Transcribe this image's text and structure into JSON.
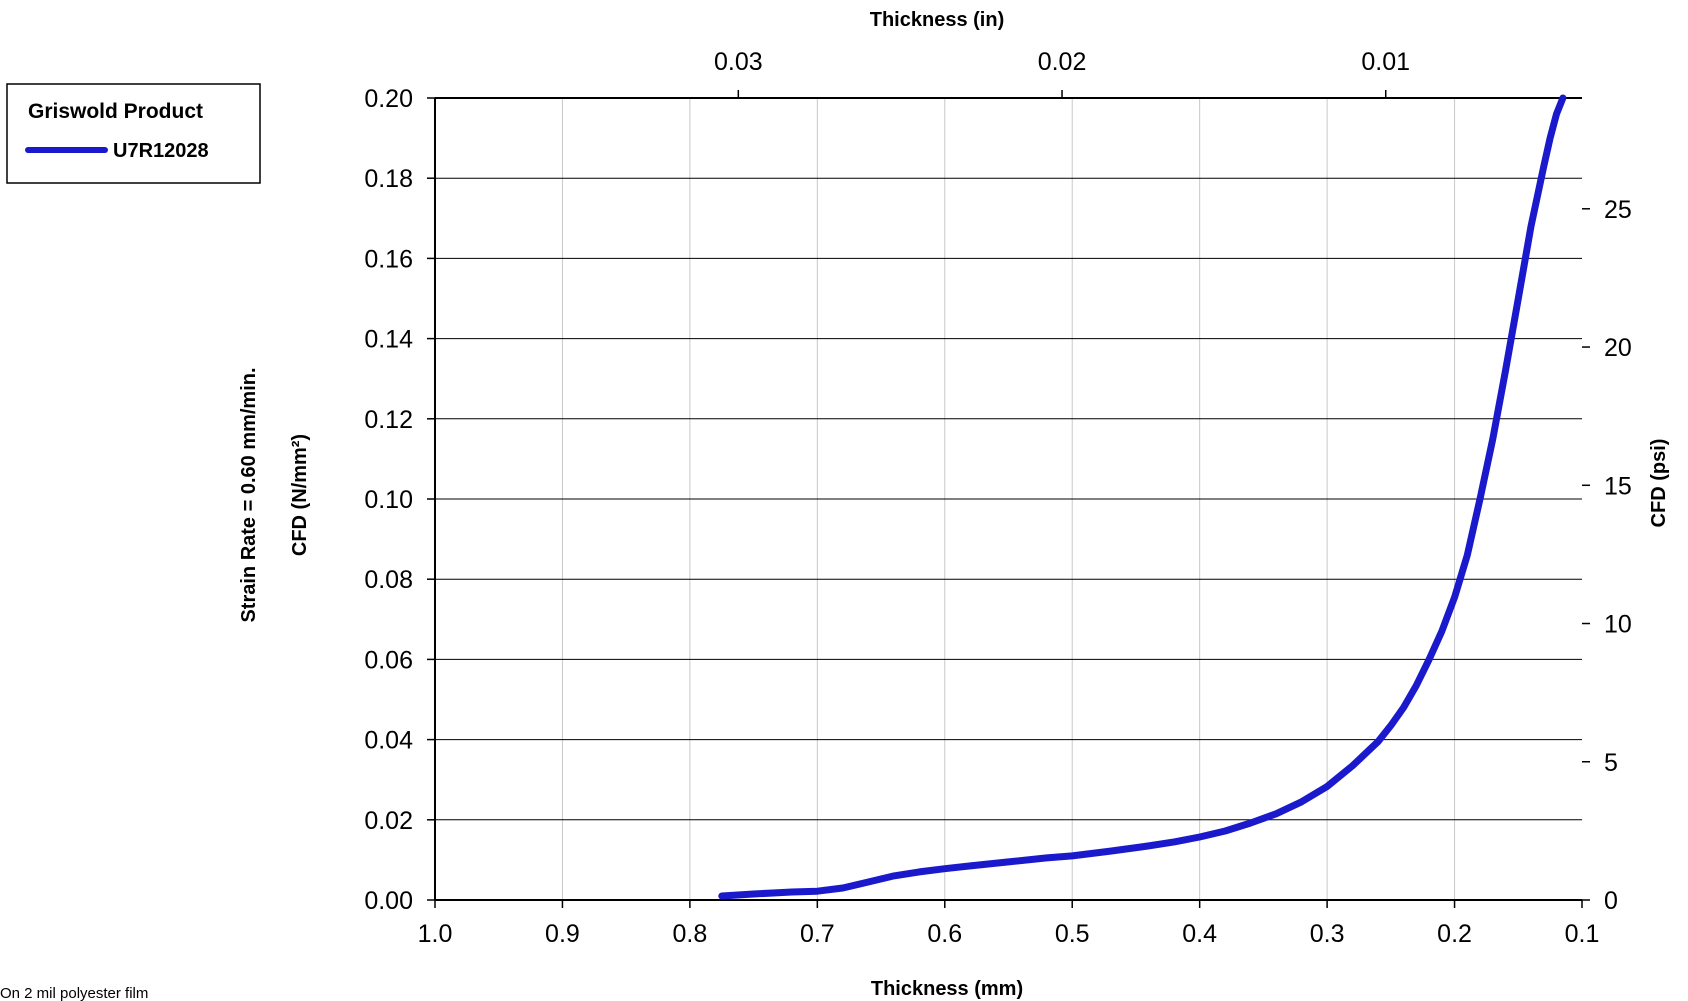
{
  "chart_data": {
    "type": "line",
    "x_axis_bottom": {
      "label": "Thickness (mm)",
      "ticks": [
        "1.0",
        "0.9",
        "0.8",
        "0.7",
        "0.6",
        "0.5",
        "0.4",
        "0.3",
        "0.2",
        "0.1"
      ],
      "range": [
        1.0,
        0.1
      ],
      "reversed": true
    },
    "x_axis_top": {
      "label": "Thickness (in)",
      "ticks": [
        "0.03",
        "0.02",
        "0.01"
      ],
      "tick_values": [
        0.03,
        0.02,
        0.01
      ]
    },
    "y_axis_left": {
      "label": "CFD (N/mm²)",
      "outer_label": "Strain Rate = 0.60 mm/min.",
      "ticks": [
        "0.00",
        "0.02",
        "0.04",
        "0.06",
        "0.08",
        "0.10",
        "0.12",
        "0.14",
        "0.16",
        "0.18",
        "0.20"
      ],
      "range": [
        0,
        0.2
      ]
    },
    "y_axis_right": {
      "label": "CFD (psi)",
      "ticks": [
        "0",
        "5",
        "10",
        "15",
        "20",
        "25"
      ],
      "tick_values": [
        0,
        5,
        10,
        15,
        20,
        25
      ]
    },
    "grid": {
      "vertical": true,
      "horizontal": true
    },
    "legend": {
      "title": "Griswold Product",
      "position": "top-left-outside",
      "entries": [
        "U7R12028"
      ]
    },
    "series": [
      {
        "name": "U7R12028",
        "color": "#1a1acc",
        "x": [
          0.775,
          0.75,
          0.72,
          0.7,
          0.68,
          0.66,
          0.64,
          0.62,
          0.6,
          0.58,
          0.55,
          0.52,
          0.5,
          0.47,
          0.44,
          0.42,
          0.4,
          0.38,
          0.36,
          0.34,
          0.32,
          0.3,
          0.28,
          0.26,
          0.25,
          0.24,
          0.23,
          0.22,
          0.21,
          0.2,
          0.19,
          0.18,
          0.17,
          0.16,
          0.15,
          0.14,
          0.13,
          0.125,
          0.12,
          0.115
        ],
        "y": [
          0.001,
          0.0015,
          0.002,
          0.0022,
          0.003,
          0.0045,
          0.006,
          0.007,
          0.0078,
          0.0085,
          0.0095,
          0.0105,
          0.011,
          0.0122,
          0.0135,
          0.0145,
          0.0157,
          0.0172,
          0.0192,
          0.0215,
          0.0245,
          0.0283,
          0.0335,
          0.0395,
          0.0435,
          0.048,
          0.0535,
          0.06,
          0.067,
          0.0755,
          0.086,
          0.1,
          0.115,
          0.132,
          0.15,
          0.168,
          0.183,
          0.19,
          0.196,
          0.2
        ]
      }
    ]
  },
  "footnote": "On 2 mil polyester film"
}
